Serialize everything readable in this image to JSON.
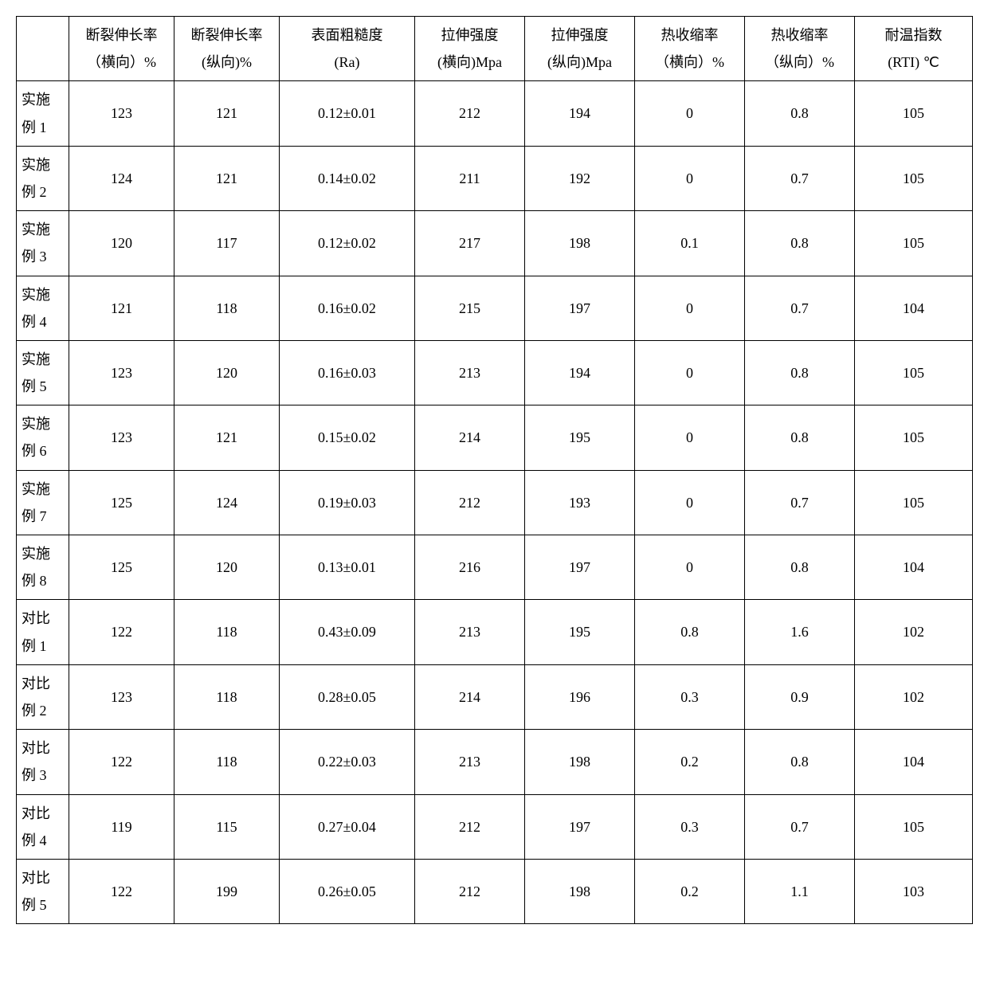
{
  "table": {
    "background_color": "#ffffff",
    "border_color": "#000000",
    "text_color": "#000000",
    "font_family": "SimSun",
    "header_fontsize": 18,
    "cell_fontsize": 18,
    "columns": [
      {
        "line1": "",
        "line2": ""
      },
      {
        "line1": "断裂伸长率",
        "line2": "（横向）%"
      },
      {
        "line1": "断裂伸长率",
        "line2": "(纵向)%"
      },
      {
        "line1": "表面粗糙度",
        "line2": "(Ra)"
      },
      {
        "line1": "拉伸强度",
        "line2": "(横向)Mpa"
      },
      {
        "line1": "拉伸强度",
        "line2": "(纵向)Mpa"
      },
      {
        "line1": "热收缩率",
        "line2": "（横向）%"
      },
      {
        "line1": "热收缩率",
        "line2": "（纵向）%"
      },
      {
        "line1": "耐温指数",
        "line2": "(RTI) ℃"
      }
    ],
    "rows": [
      {
        "label_line1": "实施",
        "label_line2": "例 1",
        "cells": [
          "123",
          "121",
          "0.12±0.01",
          "212",
          "194",
          "0",
          "0.8",
          "105"
        ]
      },
      {
        "label_line1": "实施",
        "label_line2": "例 2",
        "cells": [
          "124",
          "121",
          "0.14±0.02",
          "211",
          "192",
          "0",
          "0.7",
          "105"
        ]
      },
      {
        "label_line1": "实施",
        "label_line2": "例 3",
        "cells": [
          "120",
          "117",
          "0.12±0.02",
          "217",
          "198",
          "0.1",
          "0.8",
          "105"
        ]
      },
      {
        "label_line1": "实施",
        "label_line2": "例 4",
        "cells": [
          "121",
          "118",
          "0.16±0.02",
          "215",
          "197",
          "0",
          "0.7",
          "104"
        ]
      },
      {
        "label_line1": "实施",
        "label_line2": "例 5",
        "cells": [
          "123",
          "120",
          "0.16±0.03",
          "213",
          "194",
          "0",
          "0.8",
          "105"
        ]
      },
      {
        "label_line1": "实施",
        "label_line2": "例 6",
        "cells": [
          "123",
          "121",
          "0.15±0.02",
          "214",
          "195",
          "0",
          "0.8",
          "105"
        ]
      },
      {
        "label_line1": "实施",
        "label_line2": "例 7",
        "cells": [
          "125",
          "124",
          "0.19±0.03",
          "212",
          "193",
          "0",
          "0.7",
          "105"
        ]
      },
      {
        "label_line1": "实施",
        "label_line2": "例 8",
        "cells": [
          "125",
          "120",
          "0.13±0.01",
          "216",
          "197",
          "0",
          "0.8",
          "104"
        ]
      },
      {
        "label_line1": "对比",
        "label_line2": "例 1",
        "cells": [
          "122",
          "118",
          "0.43±0.09",
          "213",
          "195",
          "0.8",
          "1.6",
          "102"
        ]
      },
      {
        "label_line1": "对比",
        "label_line2": "例 2",
        "cells": [
          "123",
          "118",
          "0.28±0.05",
          "214",
          "196",
          "0.3",
          "0.9",
          "102"
        ]
      },
      {
        "label_line1": "对比",
        "label_line2": "例 3",
        "cells": [
          "122",
          "118",
          "0.22±0.03",
          "213",
          "198",
          "0.2",
          "0.8",
          "104"
        ]
      },
      {
        "label_line1": "对比",
        "label_line2": "例 4",
        "cells": [
          "119",
          "115",
          "0.27±0.04",
          "212",
          "197",
          "0.3",
          "0.7",
          "105"
        ]
      },
      {
        "label_line1": "对比",
        "label_line2": "例 5",
        "cells": [
          "122",
          "199",
          "0.26±0.05",
          "212",
          "198",
          "0.2",
          "1.1",
          "103"
        ]
      }
    ]
  }
}
